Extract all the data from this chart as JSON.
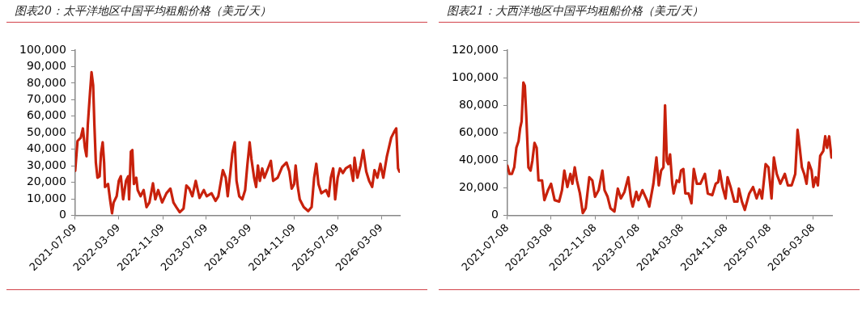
{
  "chart_data": [
    {
      "type": "line",
      "title": "图表20：太平洋地区中国平均租船价格（美元/天）",
      "series": [
        {
          "color": "#c8210c",
          "x": [
            "2021-07-09",
            "2021-07-22",
            "2021-08-09",
            "2021-08-21",
            "2021-09-01",
            "2021-09-10",
            "2021-09-17",
            "2021-09-30",
            "2021-10-08",
            "2021-10-17",
            "2021-10-24",
            "2021-11-01",
            "2021-11-10",
            "2021-11-22",
            "2021-11-30",
            "2021-12-09",
            "2021-12-17",
            "2021-12-22",
            "2022-01-08",
            "2022-01-19",
            "2022-01-30",
            "2022-02-08",
            "2022-02-25",
            "2022-03-09",
            "2022-03-20",
            "2022-04-02",
            "2022-04-18",
            "2022-04-30",
            "2022-05-05",
            "2022-05-15",
            "2022-05-23",
            "2022-06-01",
            "2022-06-14",
            "2022-06-22",
            "2022-07-08",
            "2022-07-25",
            "2022-08-10",
            "2022-08-26",
            "2022-09-15",
            "2022-09-28",
            "2022-10-14",
            "2022-11-05",
            "2022-11-29",
            "2022-12-21",
            "2023-01-07",
            "2023-01-23",
            "2023-02-11",
            "2023-03-04",
            "2023-03-20",
            "2023-04-05",
            "2023-04-22",
            "2023-05-11",
            "2023-06-01",
            "2023-06-25",
            "2023-07-11",
            "2023-08-07",
            "2023-08-29",
            "2023-09-14",
            "2023-10-09",
            "2023-10-25",
            "2023-11-05",
            "2023-11-20",
            "2023-12-01",
            "2023-12-14",
            "2023-12-24",
            "2024-01-08",
            "2024-01-25",
            "2024-02-10",
            "2024-02-22",
            "2024-03-06",
            "2024-03-16",
            "2024-03-31",
            "2024-04-11",
            "2024-04-21",
            "2024-05-02",
            "2024-05-15",
            "2024-05-27",
            "2024-06-16",
            "2024-07-02",
            "2024-07-15",
            "2024-08-09",
            "2024-09-03",
            "2024-09-27",
            "2024-10-13",
            "2024-10-26",
            "2024-11-09",
            "2024-11-17",
            "2024-11-29",
            "2024-12-10",
            "2025-01-01",
            "2025-01-26",
            "2025-02-14",
            "2025-02-28",
            "2025-03-12",
            "2025-03-24",
            "2025-04-09",
            "2025-05-05",
            "2025-05-20",
            "2025-06-01",
            "2025-06-14",
            "2025-06-25",
            "2025-07-09",
            "2025-07-22",
            "2025-08-07",
            "2025-08-23",
            "2025-09-17",
            "2025-10-03",
            "2025-10-11",
            "2025-10-27",
            "2025-11-13",
            "2025-11-28",
            "2025-12-15",
            "2025-12-31",
            "2026-01-17",
            "2026-01-30",
            "2026-02-15",
            "2026-03-04",
            "2026-03-20",
            "2026-04-09",
            "2026-05-03",
            "2026-05-20",
            "2026-05-31",
            "2026-06-10",
            "2026-06-18"
          ],
          "values": [
            27000,
            45000,
            47000,
            52600,
            41000,
            35800,
            54500,
            75000,
            86600,
            78700,
            54500,
            32000,
            22800,
            23700,
            37700,
            44200,
            32000,
            17200,
            19000,
            9700,
            1300,
            7800,
            11600,
            21000,
            23700,
            9700,
            20900,
            23700,
            9700,
            38600,
            39500,
            19000,
            22800,
            15300,
            11600,
            15300,
            5000,
            7800,
            19400,
            9700,
            15300,
            7800,
            13400,
            16200,
            7800,
            5000,
            1900,
            4100,
            18100,
            16200,
            11600,
            20900,
            10600,
            15300,
            11600,
            13400,
            8800,
            11600,
            27400,
            22800,
            11600,
            26500,
            37700,
            44200,
            20900,
            11600,
            9700,
            15300,
            30200,
            44200,
            34000,
            22800,
            17200,
            30200,
            20900,
            28400,
            22800,
            28400,
            33000,
            20900,
            22800,
            29300,
            32000,
            26500,
            16200,
            19000,
            30200,
            17200,
            9700,
            5000,
            2600,
            5000,
            22800,
            31200,
            19000,
            13400,
            15300,
            11600,
            22800,
            28400,
            9700,
            22800,
            28400,
            25600,
            28400,
            30200,
            20900,
            34900,
            22800,
            30200,
            39500,
            26500,
            20900,
            17200,
            27400,
            22800,
            31200,
            22800,
            35800,
            47000,
            50700,
            52600,
            28400,
            26500
          ]
        }
      ],
      "xlim": [
        "2021-07-09",
        "2026-06-20"
      ],
      "xticks": [
        "2021-07-09",
        "2022-03-09",
        "2022-11-09",
        "2023-07-09",
        "2024-03-09",
        "2024-11-09",
        "2025-07-09",
        "2026-03-09"
      ],
      "ylim": [
        0,
        100000
      ],
      "yticks": [
        {
          "value": 0,
          "label": "0"
        },
        {
          "value": 10000,
          "label": "10,000"
        },
        {
          "value": 20000,
          "label": "20,000"
        },
        {
          "value": 30000,
          "label": "30,000"
        },
        {
          "value": 40000,
          "label": "40,000"
        },
        {
          "value": 50000,
          "label": "50,000"
        },
        {
          "value": 60000,
          "label": "60,000"
        },
        {
          "value": 70000,
          "label": "70,000"
        },
        {
          "value": 80000,
          "label": "80,000"
        },
        {
          "value": 90000,
          "label": "90,000"
        },
        {
          "value": 100000,
          "label": "100,000"
        }
      ],
      "marker": "none",
      "line_style": "solid"
    },
    {
      "type": "line",
      "title": "图表21：大西洋地区中国平均租船价格（美元/天）",
      "series": [
        {
          "color": "#c8210c",
          "x": [
            "2021-07-08",
            "2021-07-20",
            "2021-08-02",
            "2021-08-15",
            "2021-08-27",
            "2021-09-08",
            "2021-09-17",
            "2021-09-25",
            "2021-10-05",
            "2021-10-13",
            "2021-10-21",
            "2021-11-02",
            "2021-11-14",
            "2021-11-24",
            "2021-12-06",
            "2021-12-18",
            "2021-12-28",
            "2022-01-17",
            "2022-01-30",
            "2022-02-19",
            "2022-03-08",
            "2022-03-28",
            "2022-04-22",
            "2022-05-08",
            "2022-05-21",
            "2022-06-07",
            "2022-06-24",
            "2022-07-05",
            "2022-07-18",
            "2022-07-30",
            "2022-08-16",
            "2022-09-01",
            "2022-09-17",
            "2022-10-07",
            "2022-10-24",
            "2022-11-08",
            "2022-11-28",
            "2022-12-19",
            "2022-12-31",
            "2023-01-17",
            "2023-02-02",
            "2023-02-24",
            "2023-03-15",
            "2023-04-01",
            "2023-04-21",
            "2023-05-12",
            "2023-05-28",
            "2023-06-06",
            "2023-06-26",
            "2023-07-08",
            "2023-07-30",
            "2023-08-24",
            "2023-09-06",
            "2023-09-29",
            "2023-10-16",
            "2023-10-29",
            "2023-11-11",
            "2023-11-24",
            "2023-12-03",
            "2023-12-13",
            "2023-12-21",
            "2023-12-31",
            "2024-01-12",
            "2024-01-20",
            "2024-02-06",
            "2024-02-19",
            "2024-03-01",
            "2024-03-14",
            "2024-03-25",
            "2024-04-12",
            "2024-04-28",
            "2024-05-11",
            "2024-05-28",
            "2024-06-17",
            "2024-07-12",
            "2024-07-28",
            "2024-08-22",
            "2024-09-10",
            "2024-09-24",
            "2024-10-02",
            "2024-10-18",
            "2024-11-04",
            "2024-11-15",
            "2024-12-02",
            "2024-12-23",
            "2025-01-09",
            "2025-01-17",
            "2025-02-03",
            "2025-02-19",
            "2025-03-16",
            "2025-04-06",
            "2025-04-26",
            "2025-05-13",
            "2025-05-26",
            "2025-06-15",
            "2025-07-01",
            "2025-07-18",
            "2025-07-31",
            "2025-08-16",
            "2025-09-05",
            "2025-09-30",
            "2025-10-17",
            "2025-11-07",
            "2025-11-27",
            "2025-12-10",
            "2025-12-22",
            "2026-01-03",
            "2026-01-16",
            "2026-01-29",
            "2026-02-10",
            "2026-02-26",
            "2026-03-08",
            "2026-03-21",
            "2026-04-02",
            "2026-04-15",
            "2026-05-02",
            "2026-05-13",
            "2026-05-23",
            "2026-06-04",
            "2026-06-17"
          ],
          "values": [
            36000,
            30100,
            30100,
            34900,
            49100,
            53800,
            63300,
            68100,
            96500,
            94100,
            72800,
            34900,
            32500,
            39600,
            52600,
            49100,
            25400,
            25400,
            11100,
            18300,
            23000,
            11100,
            10000,
            18300,
            32500,
            20600,
            30100,
            23000,
            34900,
            25400,
            15900,
            1700,
            5200,
            27700,
            25400,
            13500,
            18300,
            32500,
            18300,
            13500,
            5200,
            2800,
            19400,
            12300,
            17100,
            27700,
            11100,
            6400,
            17100,
            11100,
            18300,
            11100,
            6400,
            23000,
            42000,
            21800,
            32500,
            34900,
            79900,
            39600,
            37200,
            44300,
            23000,
            15900,
            25400,
            24200,
            32500,
            33700,
            15900,
            15900,
            8800,
            33700,
            23000,
            23000,
            30100,
            15900,
            14700,
            23000,
            24200,
            32500,
            20600,
            12300,
            27700,
            20600,
            10000,
            10000,
            19400,
            10000,
            4000,
            15900,
            20600,
            12300,
            18700,
            12300,
            37200,
            34900,
            12300,
            42000,
            30100,
            23000,
            30100,
            21800,
            21800,
            30100,
            62100,
            49100,
            34900,
            30100,
            23000,
            38400,
            32500,
            20600,
            27700,
            21800,
            43200,
            46700,
            57400,
            49100,
            57400,
            42000
          ]
        }
      ],
      "xlim": [
        "2021-07-08",
        "2026-06-20"
      ],
      "xticks": [
        "2021-07-08",
        "2022-03-08",
        "2022-11-08",
        "2023-07-08",
        "2024-03-08",
        "2024-11-08",
        "2025-07-08",
        "2026-03-08"
      ],
      "ylim": [
        0,
        120000
      ],
      "yticks": [
        {
          "value": 0,
          "label": "0"
        },
        {
          "value": 20000,
          "label": "20,000"
        },
        {
          "value": 40000,
          "label": "40,000"
        },
        {
          "value": 60000,
          "label": "60,000"
        },
        {
          "value": 80000,
          "label": "80,000"
        },
        {
          "value": 100000,
          "label": "100,000"
        },
        {
          "value": 120000,
          "label": "120,000"
        }
      ],
      "marker": "none",
      "line_style": "solid"
    }
  ]
}
